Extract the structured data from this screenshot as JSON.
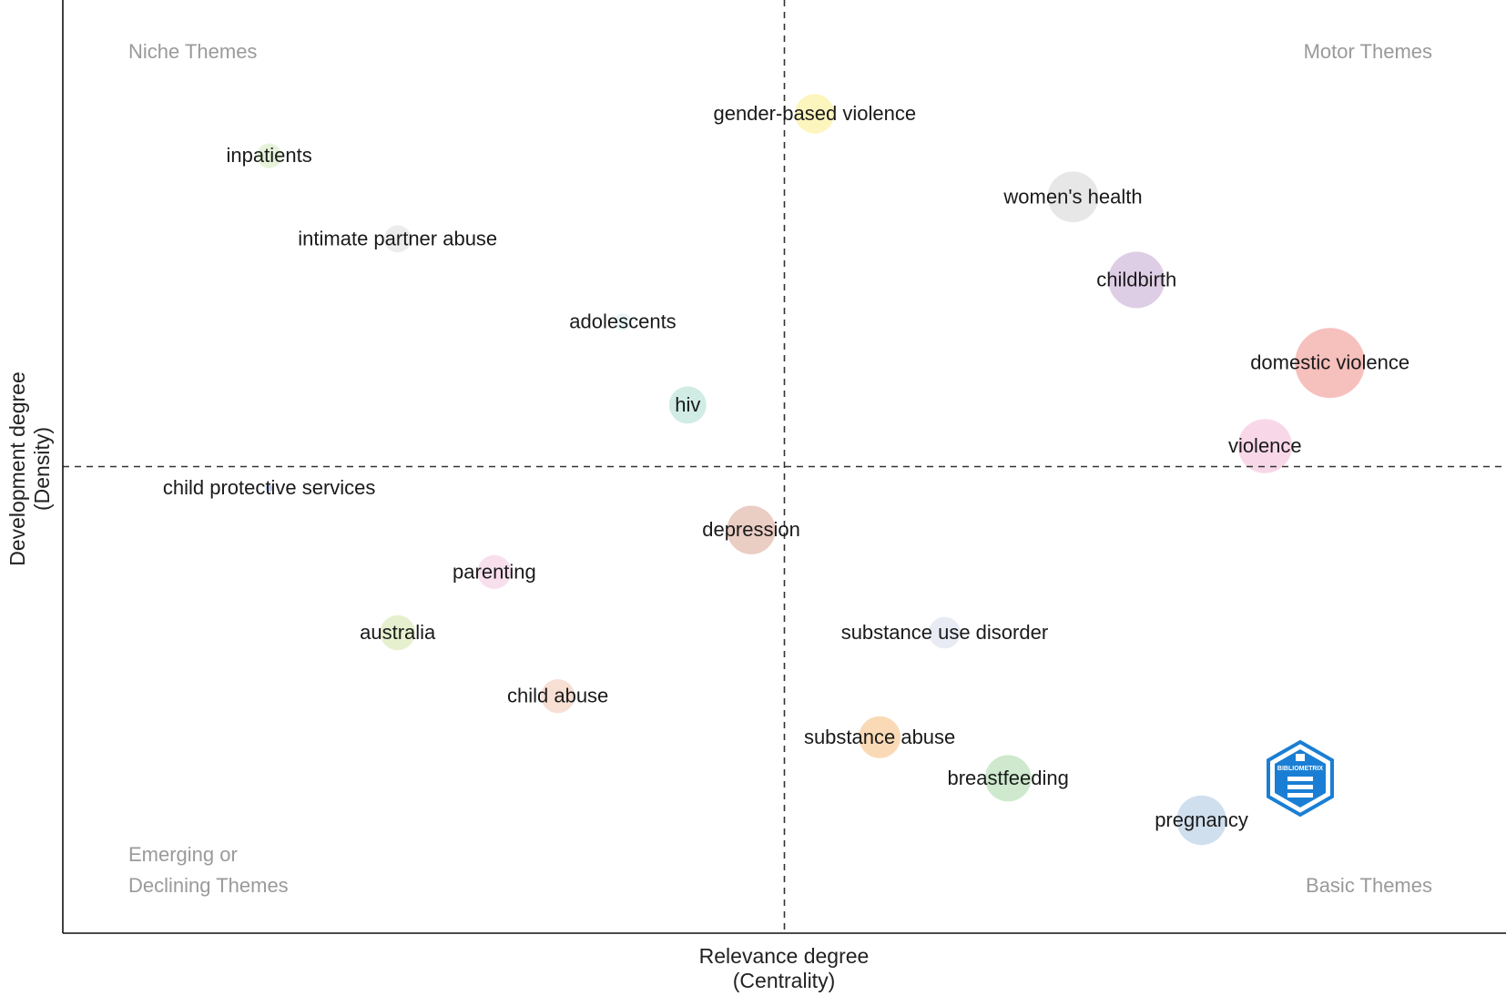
{
  "chart_data": {
    "type": "scatter",
    "subtype": "thematic-map-bubble",
    "xlabel": "Relevance degree",
    "xlabel_sub": "(Centrality)",
    "ylabel": "Development degree",
    "ylabel_sub": "(Density)",
    "xlim": [
      0,
      1
    ],
    "ylim": [
      0,
      1
    ],
    "grid": false,
    "reference_lines": {
      "x": 0.5,
      "y": 0.5,
      "style": "dashed"
    },
    "quadrant_labels": {
      "top_left": "Niche Themes",
      "top_right": "Motor Themes",
      "bottom_left_1": "Emerging or",
      "bottom_left_2": "Declining Themes",
      "bottom_right": "Basic Themes"
    },
    "points": [
      {
        "label": "gender-based violence",
        "x": 0.521,
        "y": 0.878,
        "size": 0.35,
        "color": "#fdf3b3"
      },
      {
        "label": "inpatients",
        "x": 0.143,
        "y": 0.833,
        "size": 0.22,
        "color": "#e2f0d4"
      },
      {
        "label": "women's health",
        "x": 0.7,
        "y": 0.789,
        "size": 0.45,
        "color": "#e3e3e3"
      },
      {
        "label": "intimate partner abuse",
        "x": 0.232,
        "y": 0.744,
        "size": 0.24,
        "color": "#e9e9e9"
      },
      {
        "label": "childbirth",
        "x": 0.744,
        "y": 0.7,
        "size": 0.5,
        "color": "#d8c5e0"
      },
      {
        "label": "adolescents",
        "x": 0.388,
        "y": 0.655,
        "size": 0.15,
        "color": "#e5f2f7"
      },
      {
        "label": "domestic violence",
        "x": 0.878,
        "y": 0.611,
        "size": 0.62,
        "color": "#f5b5b2"
      },
      {
        "label": "hiv",
        "x": 0.433,
        "y": 0.566,
        "size": 0.33,
        "color": "#c9e9df"
      },
      {
        "label": "violence",
        "x": 0.833,
        "y": 0.522,
        "size": 0.48,
        "color": "#f7d1e4"
      },
      {
        "label": "child protective services",
        "x": 0.143,
        "y": 0.477,
        "size": 0.05,
        "color": "#b9c8e9"
      },
      {
        "label": "depression",
        "x": 0.477,
        "y": 0.432,
        "size": 0.43,
        "color": "#e6c4b8"
      },
      {
        "label": "parenting",
        "x": 0.299,
        "y": 0.387,
        "size": 0.3,
        "color": "#f7d9e9"
      },
      {
        "label": "australia",
        "x": 0.232,
        "y": 0.322,
        "size": 0.31,
        "color": "#e2edc5"
      },
      {
        "label": "substance use disorder",
        "x": 0.611,
        "y": 0.322,
        "size": 0.28,
        "color": "#e4e7f1"
      },
      {
        "label": "child abuse",
        "x": 0.343,
        "y": 0.254,
        "size": 0.3,
        "color": "#f6d9cc"
      },
      {
        "label": "substance abuse",
        "x": 0.566,
        "y": 0.21,
        "size": 0.37,
        "color": "#f9d3a9"
      },
      {
        "label": "breastfeeding",
        "x": 0.655,
        "y": 0.166,
        "size": 0.41,
        "color": "#c6e5c4"
      },
      {
        "label": "pregnancy",
        "x": 0.789,
        "y": 0.121,
        "size": 0.44,
        "color": "#c8d9eb"
      }
    ]
  },
  "logo": {
    "name": "bibliometrix-logo",
    "text": "BIBLIOMETRIX",
    "color": "#1a7fd4"
  }
}
